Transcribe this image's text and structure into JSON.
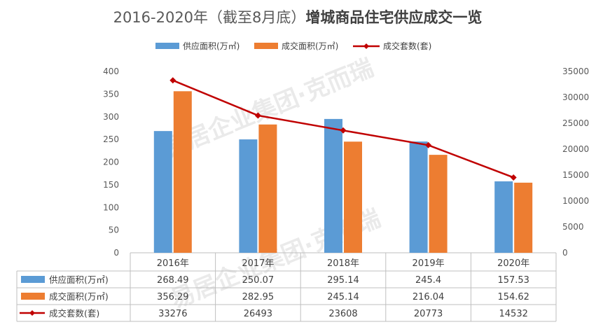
{
  "chart_data": {
    "type": "bar",
    "title": "2016-2020年（截至8月底）",
    "title_bold": "增城商品住宅供应成交一览",
    "categories": [
      "2016年",
      "2017年",
      "2018年",
      "2019年",
      "2020年"
    ],
    "series": [
      {
        "name": "供应面积(万㎡)",
        "kind": "bar",
        "axis": "left",
        "color": "#5b9bd5",
        "values": [
          268.49,
          250.07,
          295.14,
          245.4,
          157.53
        ]
      },
      {
        "name": "成交面积(万㎡)",
        "kind": "bar",
        "axis": "left",
        "color": "#ed7d31",
        "values": [
          356.29,
          282.95,
          245.14,
          216.04,
          154.62
        ]
      },
      {
        "name": "成交套数(套)",
        "kind": "line",
        "axis": "right",
        "color": "#c00000",
        "values": [
          33276,
          26493,
          23608,
          20773,
          14532
        ]
      }
    ],
    "ylim_left": [
      0,
      400
    ],
    "yticks_left": [
      0,
      50,
      100,
      150,
      200,
      250,
      300,
      350,
      400
    ],
    "ylim_right": [
      0,
      35000
    ],
    "yticks_right": [
      0,
      5000,
      10000,
      15000,
      20000,
      25000,
      30000,
      35000
    ],
    "legend_position": "top",
    "grid": false,
    "data_table": true,
    "table_values": [
      [
        "268.49",
        "250.07",
        "295.14",
        "245.4",
        "157.53"
      ],
      [
        "356.29",
        "282.95",
        "245.14",
        "216.04",
        "154.62"
      ],
      [
        "33276",
        "26493",
        "23608",
        "20773",
        "14532"
      ]
    ]
  },
  "watermark": "易居企业集团·克而瑞"
}
